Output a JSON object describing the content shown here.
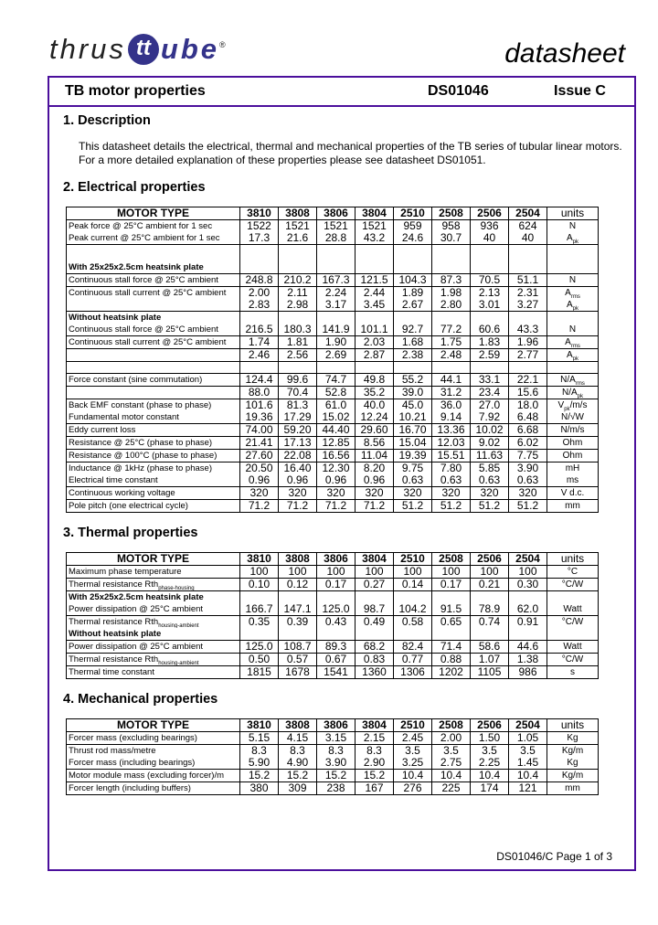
{
  "brand": {
    "logo_text": "thrustube",
    "registered": "®",
    "doc_kind": "datasheet"
  },
  "header": {
    "title": "TB motor properties",
    "doc_id": "DS01046",
    "issue": "Issue C"
  },
  "sections": {
    "description": {
      "title": "1. Description",
      "line1": "This datasheet details the electrical, thermal and mechanical properties of the TB series of tubular linear motors.",
      "line2": "For a more detailed explanation of these properties please see datasheet DS01051."
    },
    "electrical": {
      "title": "2. Electrical properties"
    },
    "thermal": {
      "title": "3. Thermal properties"
    },
    "mechanical": {
      "title": "4. Mechanical properties"
    }
  },
  "columns": {
    "label": "MOTOR TYPE",
    "types": [
      "3810",
      "3808",
      "3806",
      "3804",
      "2510",
      "2508",
      "2506",
      "2504"
    ],
    "units": "units"
  },
  "electrical_rows": [
    {
      "label": "Peak force @ 25°C ambient for 1 sec",
      "values": [
        "1522",
        "1521",
        "1521",
        "1521",
        "959",
        "958",
        "936",
        "624"
      ],
      "unit": "N",
      "sub": ""
    },
    {
      "label": "Peak current @ 25°C ambient for 1 sec",
      "values": [
        "17.3",
        "21.6",
        "28.8",
        "43.2",
        "24.6",
        "30.7",
        "40",
        "40"
      ],
      "unit": "A",
      "sub": "pk",
      "border": true
    },
    {
      "label": "",
      "values": [],
      "unit": "",
      "sub": "",
      "tall": true
    },
    {
      "label": "With 25x25x2.5cm heatsink plate",
      "values": [],
      "unit": "",
      "sub": "",
      "subhead": true,
      "border": true
    },
    {
      "label": "Continuous stall force @ 25°C ambient",
      "values": [
        "248.8",
        "210.2",
        "167.3",
        "121.5",
        "104.3",
        "87.3",
        "70.5",
        "51.1"
      ],
      "unit": "N",
      "sub": "",
      "border": true
    },
    {
      "label": "Continuous stall current @ 25°C ambient",
      "values": [
        "2.00",
        "2.11",
        "2.24",
        "2.44",
        "1.89",
        "1.98",
        "2.13",
        "2.31"
      ],
      "unit": "A",
      "sub": "rms"
    },
    {
      "label": "",
      "values": [
        "2.83",
        "2.98",
        "3.17",
        "3.45",
        "2.67",
        "2.80",
        "3.01",
        "3.27"
      ],
      "unit": "A",
      "sub": "pk",
      "border": true
    },
    {
      "label": "Without heatsink plate",
      "values": [],
      "unit": "",
      "sub": "",
      "subhead": true
    },
    {
      "label": "Continuous stall force @ 25°C ambient",
      "values": [
        "216.5",
        "180.3",
        "141.9",
        "101.1",
        "92.7",
        "77.2",
        "60.6",
        "43.3"
      ],
      "unit": "N",
      "sub": "",
      "border": true
    },
    {
      "label": "Continuous stall current @ 25°C ambient",
      "values": [
        "1.74",
        "1.81",
        "1.90",
        "2.03",
        "1.68",
        "1.75",
        "1.83",
        "1.96"
      ],
      "unit": "A",
      "sub": "rms",
      "border": true
    },
    {
      "label": "",
      "values": [
        "2.46",
        "2.56",
        "2.69",
        "2.87",
        "2.38",
        "2.48",
        "2.59",
        "2.77"
      ],
      "unit": "A",
      "sub": "pk",
      "border": true
    },
    {
      "label": "",
      "values": [],
      "unit": "",
      "sub": "",
      "border": true
    },
    {
      "label": "Force constant (sine commutation)",
      "values": [
        "124.4",
        "99.6",
        "74.7",
        "49.8",
        "55.2",
        "44.1",
        "33.1",
        "22.1"
      ],
      "unit": "N/A",
      "sub": "rms",
      "border": true
    },
    {
      "label": "",
      "values": [
        "88.0",
        "70.4",
        "52.8",
        "35.2",
        "39.0",
        "31.2",
        "23.4",
        "15.6"
      ],
      "unit": "N/A",
      "sub": "pk",
      "border": true
    },
    {
      "label": "Back EMF constant (phase to phase)",
      "values": [
        "101.6",
        "81.3",
        "61.0",
        "40.0",
        "45.0",
        "36.0",
        "27.0",
        "18.0"
      ],
      "unit": "V",
      "sub": "pk",
      "unit2": "/m/s"
    },
    {
      "label": "Fundamental motor constant",
      "values": [
        "19.36",
        "17.29",
        "15.02",
        "12.24",
        "10.21",
        "9.14",
        "7.92",
        "6.48"
      ],
      "unit": "N/√W",
      "sub": "",
      "border": true
    },
    {
      "label": "Eddy current loss",
      "values": [
        "74.00",
        "59.20",
        "44.40",
        "29.60",
        "16.70",
        "13.36",
        "10.02",
        "6.68"
      ],
      "unit": "N/m/s",
      "sub": "",
      "border": true
    },
    {
      "label": "Resistance @ 25°C (phase to phase)",
      "values": [
        "21.41",
        "17.13",
        "12.85",
        "8.56",
        "15.04",
        "12.03",
        "9.02",
        "6.02"
      ],
      "unit": "Ohm",
      "sub": "",
      "border": true
    },
    {
      "label": "Resistance @ 100°C (phase to phase)",
      "values": [
        "27.60",
        "22.08",
        "16.56",
        "11.04",
        "19.39",
        "15.51",
        "11.63",
        "7.75"
      ],
      "unit": "Ohm",
      "sub": "",
      "border": true
    },
    {
      "label": "Inductance @ 1kHz (phase to phase)",
      "values": [
        "20.50",
        "16.40",
        "12.30",
        "8.20",
        "9.75",
        "7.80",
        "5.85",
        "3.90"
      ],
      "unit": "mH",
      "sub": ""
    },
    {
      "label": "Electrical time constant",
      "values": [
        "0.96",
        "0.96",
        "0.96",
        "0.96",
        "0.63",
        "0.63",
        "0.63",
        "0.63"
      ],
      "unit": "ms",
      "sub": "",
      "border": true
    },
    {
      "label": "Continuous working voltage",
      "values": [
        "320",
        "320",
        "320",
        "320",
        "320",
        "320",
        "320",
        "320"
      ],
      "unit": "V d.c.",
      "sub": "",
      "border": true
    },
    {
      "label": "Pole pitch (one electrical cycle)",
      "values": [
        "71.2",
        "71.2",
        "71.2",
        "71.2",
        "51.2",
        "51.2",
        "51.2",
        "51.2"
      ],
      "unit": "mm",
      "sub": "",
      "border": true
    }
  ],
  "thermal_rows": [
    {
      "label": "Maximum phase temperature",
      "values": [
        "100",
        "100",
        "100",
        "100",
        "100",
        "100",
        "100",
        "100"
      ],
      "unit": "°C",
      "sub": "",
      "border": true
    },
    {
      "label": "Thermal resistance Rth",
      "lsub": "phase-housing",
      "values": [
        "0.10",
        "0.12",
        "0.17",
        "0.27",
        "0.14",
        "0.17",
        "0.21",
        "0.30"
      ],
      "unit": "°C/W",
      "sub": "",
      "border": true
    },
    {
      "label": "With 25x25x2.5cm heatsink plate",
      "values": [],
      "unit": "",
      "sub": "",
      "subhead": true
    },
    {
      "label": "Power dissipation @ 25°C ambient",
      "values": [
        "166.7",
        "147.1",
        "125.0",
        "98.7",
        "104.2",
        "91.5",
        "78.9",
        "62.0"
      ],
      "unit": "Watt",
      "sub": "",
      "border": true
    },
    {
      "label": "Thermal resistance Rth",
      "lsub": "housing-ambient",
      "values": [
        "0.35",
        "0.39",
        "0.43",
        "0.49",
        "0.58",
        "0.65",
        "0.74",
        "0.91"
      ],
      "unit": "°C/W",
      "sub": ""
    },
    {
      "label": "Without heatsink plate",
      "values": [],
      "unit": "",
      "sub": "",
      "subhead": true,
      "border": true
    },
    {
      "label": "Power dissipation @ 25°C ambient",
      "values": [
        "125.0",
        "108.7",
        "89.3",
        "68.2",
        "82.4",
        "71.4",
        "58.6",
        "44.6"
      ],
      "unit": "Watt",
      "sub": "",
      "border": true
    },
    {
      "label": "Thermal resistance Rth",
      "lsub": "housing-ambient",
      "values": [
        "0.50",
        "0.57",
        "0.67",
        "0.83",
        "0.77",
        "0.88",
        "1.07",
        "1.38"
      ],
      "unit": "°C/W",
      "sub": "",
      "border": true
    },
    {
      "label": "Thermal time constant",
      "values": [
        "1815",
        "1678",
        "1541",
        "1360",
        "1306",
        "1202",
        "1105",
        "986"
      ],
      "unit": "s",
      "sub": "",
      "border": true
    }
  ],
  "mechanical_rows": [
    {
      "label": "Forcer mass (excluding bearings)",
      "values": [
        "5.15",
        "4.15",
        "3.15",
        "2.15",
        "2.45",
        "2.00",
        "1.50",
        "1.05"
      ],
      "unit": "Kg",
      "sub": "",
      "border": true
    },
    {
      "label": "Thrust rod mass/metre",
      "values": [
        "8.3",
        "8.3",
        "8.3",
        "8.3",
        "3.5",
        "3.5",
        "3.5",
        "3.5"
      ],
      "unit": "Kg/m",
      "sub": ""
    },
    {
      "label": "Forcer mass (including bearings)",
      "values": [
        "5.90",
        "4.90",
        "3.90",
        "2.90",
        "3.25",
        "2.75",
        "2.25",
        "1.45"
      ],
      "unit": "Kg",
      "sub": "",
      "border": true
    },
    {
      "label": "Motor module mass (excluding forcer)/m",
      "values": [
        "15.2",
        "15.2",
        "15.2",
        "15.2",
        "10.4",
        "10.4",
        "10.4",
        "10.4"
      ],
      "unit": "Kg/m",
      "sub": "",
      "border": true
    },
    {
      "label": "Forcer length (including buffers)",
      "values": [
        "380",
        "309",
        "238",
        "167",
        "276",
        "225",
        "174",
        "121"
      ],
      "unit": "mm",
      "sub": "",
      "border": true
    }
  ],
  "footer": {
    "page": "DS01046/C  Page 1 of 3"
  },
  "colors": {
    "frame": "#4b0f9c",
    "brand": "#34338a"
  }
}
